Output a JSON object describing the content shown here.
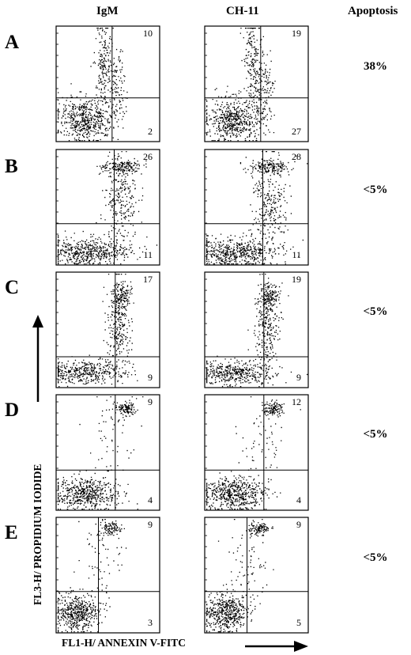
{
  "columns": {
    "left": "IgM",
    "right": "CH-11",
    "apoptosis": "Apoptosis"
  },
  "rows": [
    {
      "label": "A",
      "apoptosis": "38%",
      "left": {
        "upper": "10",
        "lower": "2"
      },
      "right": {
        "upper": "19",
        "lower": "27"
      }
    },
    {
      "label": "B",
      "apoptosis": "<5%",
      "left": {
        "upper": "26",
        "lower": "11"
      },
      "right": {
        "upper": "28",
        "lower": "11"
      }
    },
    {
      "label": "C",
      "apoptosis": "<5%",
      "left": {
        "upper": "17",
        "lower": "9"
      },
      "right": {
        "upper": "19",
        "lower": "9"
      }
    },
    {
      "label": "D",
      "apoptosis": "<5%",
      "left": {
        "upper": "9",
        "lower": "4"
      },
      "right": {
        "upper": "12",
        "lower": "4"
      }
    },
    {
      "label": "E",
      "apoptosis": "<5%",
      "left": {
        "upper": "9",
        "lower": "3"
      },
      "right": {
        "upper": "9",
        "lower": "5"
      }
    }
  ],
  "axes": {
    "y": "FL3-H/ PROPIDIUM IODIDE",
    "x": "FL1-H/ ANNEXIN V-FITC"
  }
}
